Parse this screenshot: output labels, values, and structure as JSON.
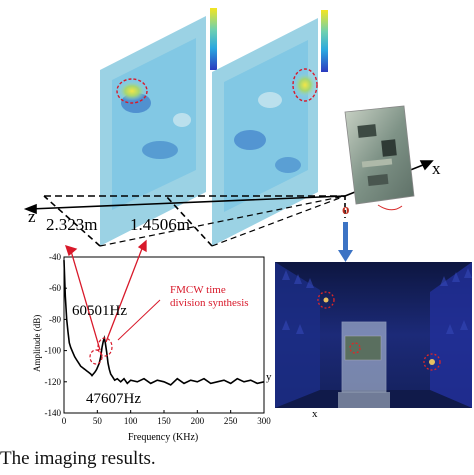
{
  "figure": {
    "distance_labels": [
      "2.323m",
      "1.4506m"
    ],
    "axis_labels": {
      "z": "z",
      "x": "x",
      "origin": "o"
    },
    "photo_axis_labels": {
      "y": "y",
      "x": "x"
    },
    "annotations": {
      "peak_high": "60501Hz",
      "peak_low": "47607Hz",
      "synthesis": "FMCW time\ndivision synthesis"
    },
    "caption": "The imaging results."
  },
  "chart_data": {
    "type": "line",
    "xlabel": "Frequency (KHz)",
    "ylabel": "Amplitude (dB)",
    "xlim": [
      0,
      300
    ],
    "ylim": [
      -140,
      -40
    ],
    "xticks": [
      "0",
      "50",
      "100",
      "150",
      "200",
      "250",
      "300"
    ],
    "yticks": [
      "-40",
      "-60",
      "-80",
      "-100",
      "-120",
      "-140"
    ],
    "grid": false,
    "series": [
      {
        "color": "#000000",
        "x": [
          0,
          2,
          4,
          6,
          8,
          10,
          13,
          16,
          19,
          22,
          25,
          28,
          31,
          34,
          37,
          40,
          42,
          44,
          46,
          47.6,
          49,
          51,
          53,
          55,
          57,
          59,
          60.5,
          62,
          64,
          66,
          68,
          70,
          73,
          76,
          80,
          85,
          90,
          95,
          100,
          110,
          120,
          130,
          140,
          150,
          160,
          170,
          180,
          190,
          200,
          210,
          220,
          230,
          240,
          250,
          260,
          270,
          280,
          290,
          300
        ],
        "y": [
          -42,
          -65,
          -80,
          -88,
          -95,
          -98,
          -101,
          -104,
          -106,
          -108,
          -110,
          -111,
          -112,
          -113,
          -114,
          -115,
          -116,
          -115,
          -114,
          -113,
          -112,
          -110,
          -108,
          -104,
          -98,
          -94,
          -92,
          -95,
          -101,
          -108,
          -112,
          -115,
          -117,
          -119,
          -118,
          -120,
          -118,
          -121,
          -119,
          -120,
          -118,
          -121,
          -119,
          -120,
          -122,
          -118,
          -121,
          -119,
          -120,
          -118,
          -121,
          -120,
          -119,
          -121,
          -118,
          -120,
          -119,
          -121,
          -120
        ]
      }
    ]
  }
}
